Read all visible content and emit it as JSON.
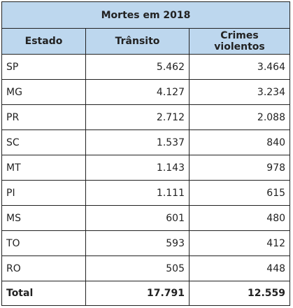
{
  "table": {
    "title": "Mortes em 2018",
    "headers": [
      "Estado",
      "Trânsito",
      "Crimes violentos"
    ],
    "rows": [
      {
        "estado": "SP",
        "transito": "5.462",
        "crimes": "3.464"
      },
      {
        "estado": "MG",
        "transito": "4.127",
        "crimes": "3.234"
      },
      {
        "estado": "PR",
        "transito": "2.712",
        "crimes": "2.088"
      },
      {
        "estado": "SC",
        "transito": "1.537",
        "crimes": "840"
      },
      {
        "estado": "MT",
        "transito": "1.143",
        "crimes": "978"
      },
      {
        "estado": "PI",
        "transito": "1.111",
        "crimes": "615"
      },
      {
        "estado": "MS",
        "transito": "601",
        "crimes": "480"
      },
      {
        "estado": "TO",
        "transito": "593",
        "crimes": "412"
      },
      {
        "estado": "RO",
        "transito": "505",
        "crimes": "448"
      }
    ],
    "total": {
      "label": "Total",
      "transito": "17.791",
      "crimes": "12.559"
    },
    "header_color": "#bdd7ee"
  }
}
